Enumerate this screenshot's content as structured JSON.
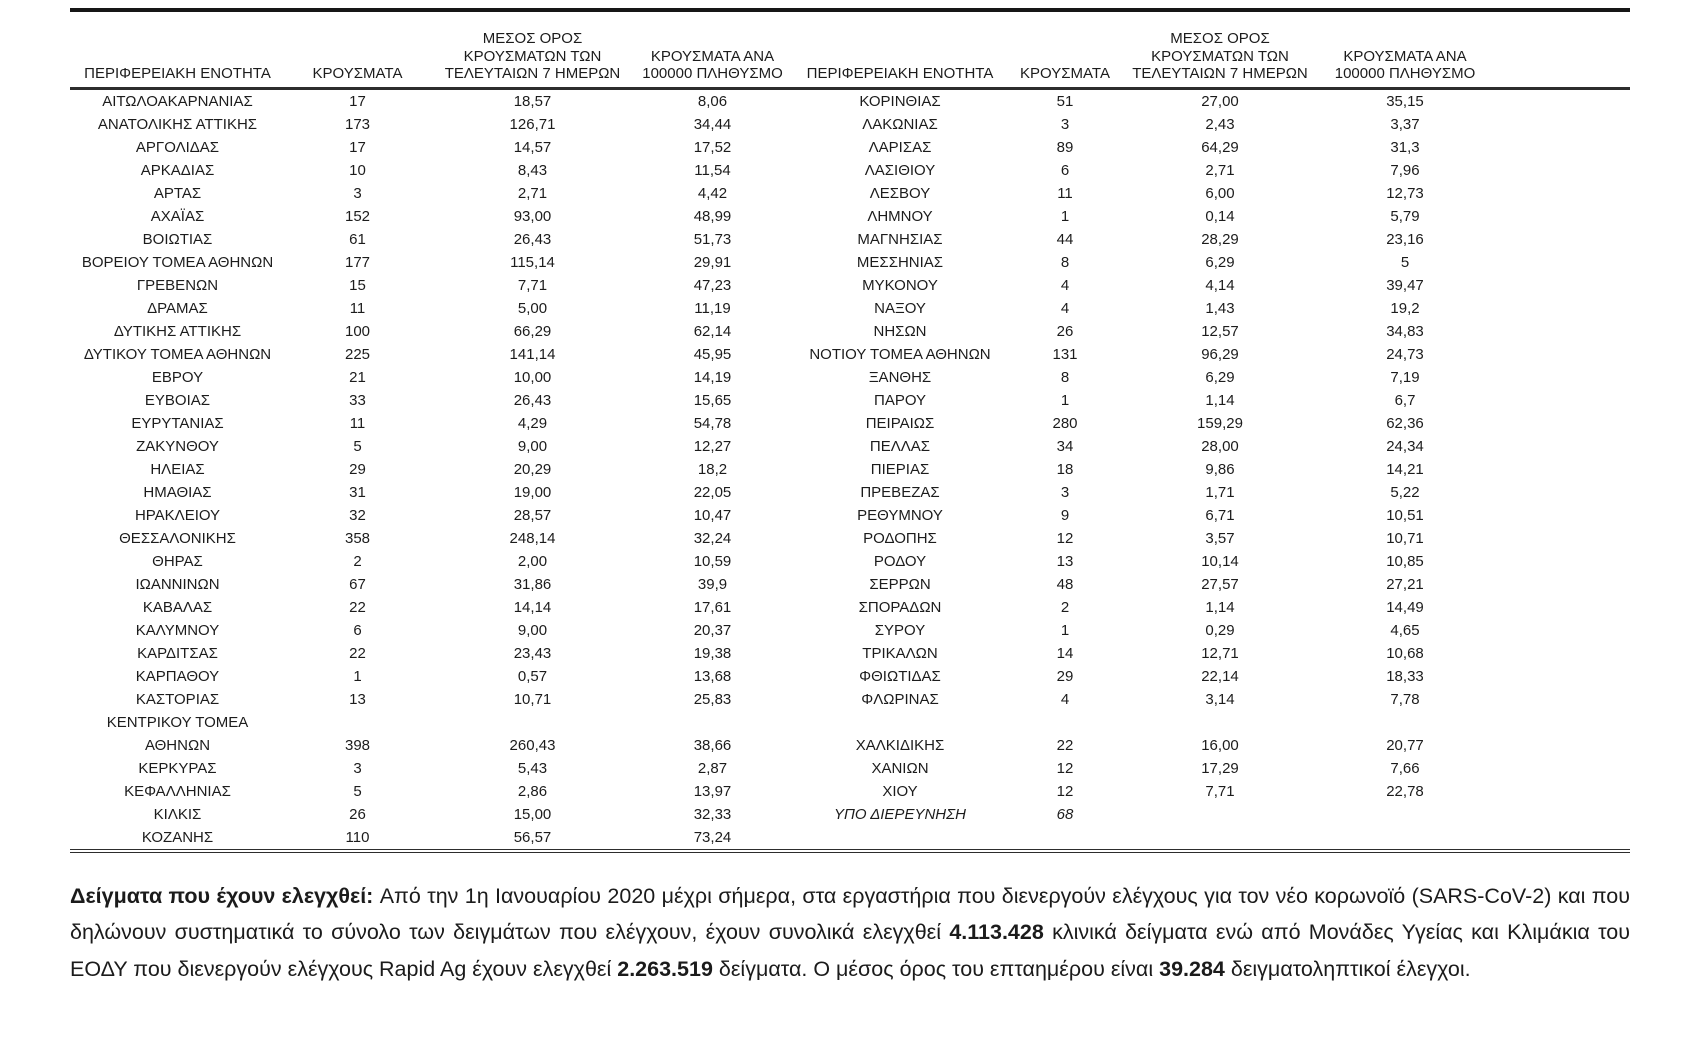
{
  "table": {
    "headers": {
      "region": "ΠΕΡΙΦΕΡΕΙΑΚΗ ΕΝΟΤΗΤΑ",
      "cases": "ΚΡΟΥΣΜΑΤΑ",
      "avg7": "ΜΕΣΟΣ ΟΡΟΣ\nΚΡΟΥΣΜΑΤΩΝ ΤΩΝ\nΤΕΛΕΥΤΑΙΩΝ 7 ΗΜΕΡΩΝ",
      "per100k": "ΚΡΟΥΣΜΑΤΑ ΑΝΑ\n100000 ΠΛΗΘΥΣΜΟ"
    },
    "rows": [
      {
        "left": [
          "ΑΙΤΩΛΟΑΚΑΡΝΑΝΙΑΣ",
          "17",
          "18,57",
          "8,06"
        ],
        "right": [
          "ΚΟΡΙΝΘΙΑΣ",
          "51",
          "27,00",
          "35,15"
        ]
      },
      {
        "left": [
          "ΑΝΑΤΟΛΙΚΗΣ ΑΤΤΙΚΗΣ",
          "173",
          "126,71",
          "34,44"
        ],
        "right": [
          "ΛΑΚΩΝΙΑΣ",
          "3",
          "2,43",
          "3,37"
        ]
      },
      {
        "left": [
          "ΑΡΓΟΛΙΔΑΣ",
          "17",
          "14,57",
          "17,52"
        ],
        "right": [
          "ΛΑΡΙΣΑΣ",
          "89",
          "64,29",
          "31,3"
        ]
      },
      {
        "left": [
          "ΑΡΚΑΔΙΑΣ",
          "10",
          "8,43",
          "11,54"
        ],
        "right": [
          "ΛΑΣΙΘΙΟΥ",
          "6",
          "2,71",
          "7,96"
        ]
      },
      {
        "left": [
          "ΑΡΤΑΣ",
          "3",
          "2,71",
          "4,42"
        ],
        "right": [
          "ΛΕΣΒΟΥ",
          "11",
          "6,00",
          "12,73"
        ]
      },
      {
        "left": [
          "ΑΧΑΪΑΣ",
          "152",
          "93,00",
          "48,99"
        ],
        "right": [
          "ΛΗΜΝΟΥ",
          "1",
          "0,14",
          "5,79"
        ]
      },
      {
        "left": [
          "ΒΟΙΩΤΙΑΣ",
          "61",
          "26,43",
          "51,73"
        ],
        "right": [
          "ΜΑΓΝΗΣΙΑΣ",
          "44",
          "28,29",
          "23,16"
        ]
      },
      {
        "left": [
          "ΒΟΡΕΙΟΥ ΤΟΜΕΑ ΑΘΗΝΩΝ",
          "177",
          "115,14",
          "29,91"
        ],
        "right": [
          "ΜΕΣΣΗΝΙΑΣ",
          "8",
          "6,29",
          "5"
        ]
      },
      {
        "left": [
          "ΓΡΕΒΕΝΩΝ",
          "15",
          "7,71",
          "47,23"
        ],
        "right": [
          "ΜΥΚΟΝΟΥ",
          "4",
          "4,14",
          "39,47"
        ]
      },
      {
        "left": [
          "ΔΡΑΜΑΣ",
          "11",
          "5,00",
          "11,19"
        ],
        "right": [
          "ΝΑΞΟΥ",
          "4",
          "1,43",
          "19,2"
        ]
      },
      {
        "left": [
          "ΔΥΤΙΚΗΣ ΑΤΤΙΚΗΣ",
          "100",
          "66,29",
          "62,14"
        ],
        "right": [
          "ΝΗΣΩΝ",
          "26",
          "12,57",
          "34,83"
        ]
      },
      {
        "left": [
          "ΔΥΤΙΚΟΥ ΤΟΜΕΑ ΑΘΗΝΩΝ",
          "225",
          "141,14",
          "45,95"
        ],
        "right": [
          "ΝΟΤΙΟΥ ΤΟΜΕΑ ΑΘΗΝΩΝ",
          "131",
          "96,29",
          "24,73"
        ]
      },
      {
        "left": [
          "ΕΒΡΟΥ",
          "21",
          "10,00",
          "14,19"
        ],
        "right": [
          "ΞΑΝΘΗΣ",
          "8",
          "6,29",
          "7,19"
        ]
      },
      {
        "left": [
          "ΕΥΒΟΙΑΣ",
          "33",
          "26,43",
          "15,65"
        ],
        "right": [
          "ΠΑΡΟΥ",
          "1",
          "1,14",
          "6,7"
        ]
      },
      {
        "left": [
          "ΕΥΡΥΤΑΝΙΑΣ",
          "11",
          "4,29",
          "54,78"
        ],
        "right": [
          "ΠΕΙΡΑΙΩΣ",
          "280",
          "159,29",
          "62,36"
        ]
      },
      {
        "left": [
          "ΖΑΚΥΝΘΟΥ",
          "5",
          "9,00",
          "12,27"
        ],
        "right": [
          "ΠΕΛΛΑΣ",
          "34",
          "28,00",
          "24,34"
        ]
      },
      {
        "left": [
          "ΗΛΕΙΑΣ",
          "29",
          "20,29",
          "18,2"
        ],
        "right": [
          "ΠΙΕΡΙΑΣ",
          "18",
          "9,86",
          "14,21"
        ]
      },
      {
        "left": [
          "ΗΜΑΘΙΑΣ",
          "31",
          "19,00",
          "22,05"
        ],
        "right": [
          "ΠΡΕΒΕΖΑΣ",
          "3",
          "1,71",
          "5,22"
        ]
      },
      {
        "left": [
          "ΗΡΑΚΛΕΙΟΥ",
          "32",
          "28,57",
          "10,47"
        ],
        "right": [
          "ΡΕΘΥΜΝΟΥ",
          "9",
          "6,71",
          "10,51"
        ]
      },
      {
        "left": [
          "ΘΕΣΣΑΛΟΝΙΚΗΣ",
          "358",
          "248,14",
          "32,24"
        ],
        "right": [
          "ΡΟΔΟΠΗΣ",
          "12",
          "3,57",
          "10,71"
        ]
      },
      {
        "left": [
          "ΘΗΡΑΣ",
          "2",
          "2,00",
          "10,59"
        ],
        "right": [
          "ΡΟΔΟΥ",
          "13",
          "10,14",
          "10,85"
        ]
      },
      {
        "left": [
          "ΙΩΑΝΝΙΝΩΝ",
          "67",
          "31,86",
          "39,9"
        ],
        "right": [
          "ΣΕΡΡΩΝ",
          "48",
          "27,57",
          "27,21"
        ]
      },
      {
        "left": [
          "ΚΑΒΑΛΑΣ",
          "22",
          "14,14",
          "17,61"
        ],
        "right": [
          "ΣΠΟΡΑΔΩΝ",
          "2",
          "1,14",
          "14,49"
        ]
      },
      {
        "left": [
          "ΚΑΛΥΜΝΟΥ",
          "6",
          "9,00",
          "20,37"
        ],
        "right": [
          "ΣΥΡΟΥ",
          "1",
          "0,29",
          "4,65"
        ]
      },
      {
        "left": [
          "ΚΑΡΔΙΤΣΑΣ",
          "22",
          "23,43",
          "19,38"
        ],
        "right": [
          "ΤΡΙΚΑΛΩΝ",
          "14",
          "12,71",
          "10,68"
        ]
      },
      {
        "left": [
          "ΚΑΡΠΑΘΟΥ",
          "1",
          "0,57",
          "13,68"
        ],
        "right": [
          "ΦΘΙΩΤΙΔΑΣ",
          "29",
          "22,14",
          "18,33"
        ]
      },
      {
        "left": [
          "ΚΑΣΤΟΡΙΑΣ",
          "13",
          "10,71",
          "25,83"
        ],
        "right": [
          "ΦΛΩΡΙΝΑΣ",
          "4",
          "3,14",
          "7,78"
        ]
      },
      {
        "left": [
          "ΚΕΝΤΡΙΚΟΥ ΤΟΜΕΑ",
          "",
          "",
          ""
        ],
        "right": [
          "",
          "",
          "",
          ""
        ]
      },
      {
        "left": [
          "ΑΘΗΝΩΝ",
          "398",
          "260,43",
          "38,66"
        ],
        "right": [
          "ΧΑΛΚΙΔΙΚΗΣ",
          "22",
          "16,00",
          "20,77"
        ]
      },
      {
        "left": [
          "ΚΕΡΚΥΡΑΣ",
          "3",
          "5,43",
          "2,87"
        ],
        "right": [
          "ΧΑΝΙΩΝ",
          "12",
          "17,29",
          "7,66"
        ]
      },
      {
        "left": [
          "ΚΕΦΑΛΛΗΝΙΑΣ",
          "5",
          "2,86",
          "13,97"
        ],
        "right": [
          "ΧΙΟΥ",
          "12",
          "7,71",
          "22,78"
        ]
      },
      {
        "left": [
          "ΚΙΛΚΙΣ",
          "26",
          "15,00",
          "32,33"
        ],
        "right": [
          "ΥΠΟ ΔΙΕΡΕΥΝΗΣΗ",
          "68",
          "",
          ""
        ],
        "right_italic": true
      },
      {
        "left": [
          "ΚΟΖΑΝΗΣ",
          "110",
          "56,57",
          "73,24"
        ],
        "right": [
          "",
          "",
          "",
          ""
        ]
      }
    ]
  },
  "footer": {
    "segments": [
      {
        "text": "Δείγματα που έχουν ελεγχθεί: ",
        "bold": true
      },
      {
        "text": "Από την 1η Ιανουαρίου 2020 μέχρι σήμερα, στα εργαστήρια που διενεργούν ελέγχους για τον νέο κορωνοϊό (SARS-CoV-2) και που δηλώνουν συστηματικά το σύνολο των δειγμάτων που ελέγχουν, έχουν συνολικά ελεγχθεί ",
        "bold": false
      },
      {
        "text": "4.113.428",
        "bold": true
      },
      {
        "text": " κλινικά δείγματα ενώ από Μονάδες Υγείας και Κλιμάκια του ΕΟΔΥ που διενεργούν ελέγχους Rapid Ag έχουν ελεγχθεί ",
        "bold": false
      },
      {
        "text": "2.263.519",
        "bold": true
      },
      {
        "text": " δείγματα. Ο μέσος όρος του επταημέρου είναι ",
        "bold": false
      },
      {
        "text": "39.284",
        "bold": true
      },
      {
        "text": " δειγματοληπτικοί έλεγχοι.",
        "bold": false
      }
    ]
  },
  "colors": {
    "rule": "#161616",
    "text": "#1c1c1c"
  }
}
